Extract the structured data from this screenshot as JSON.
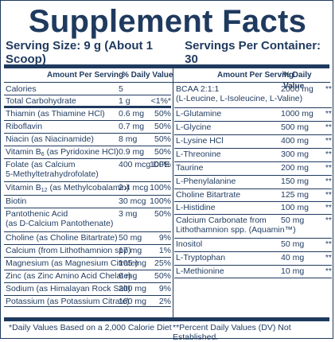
{
  "title": "Supplement Facts",
  "serving_size": "Serving Size: 9 g (About 1 Scoop)",
  "servings_per_container": "Servings Per Container: 30",
  "header_left": {
    "amount": "Amount Per Serving",
    "dv": "% Daily Value"
  },
  "header_right": {
    "amount": "Amount Per Serving",
    "dv": "% Daily Value"
  },
  "left_rows": [
    {
      "name": "Calories",
      "amount": "5",
      "dv": ""
    },
    {
      "name": "Total Carbohydrate",
      "amount": "1 g",
      "dv": "<1%*"
    },
    {
      "name": "Thiamin (as Thiamine HCl)",
      "amount": "0.6 mg",
      "dv": "50%"
    },
    {
      "name": "Riboflavin",
      "amount": "0.7 mg",
      "dv": "50%"
    },
    {
      "name": "Niacin (as Niacinamide)",
      "amount": "8 mg",
      "dv": "50%"
    },
    {
      "name": "Vitamin B6 (as Pyridoxine HCl)",
      "amount": "0.9 mg",
      "dv": "50%"
    },
    {
      "name": "Folate (as Calcium\n5-Methyltetrahydrofolate)",
      "amount": "400 mcg DFE",
      "dv": "100%"
    },
    {
      "name": "Vitamin B12 (as Methylcobalamin)",
      "amount": "2.4 mcg",
      "dv": "100%"
    },
    {
      "name": "Biotin",
      "amount": "30 mcg",
      "dv": "100%"
    },
    {
      "name": "Pantothenic Acid\n(as D-Calcium Pantothenate)",
      "amount": "3 mg",
      "dv": "50%"
    },
    {
      "name": "Choline (as Choline Bitartrate)",
      "amount": "50 mg",
      "dv": "9%"
    },
    {
      "name": "Calcium (from Lithothamnion spp)",
      "amount": "17 mg",
      "dv": "1%"
    },
    {
      "name": "Magnesium (as Magnesium Citrate)",
      "amount": "105 mg",
      "dv": "25%"
    },
    {
      "name": "Zinc (as Zinc Amino Acid Chelate)",
      "amount": "6 mg",
      "dv": "50%"
    },
    {
      "name": "Sodium (as Himalayan Rock Salt)",
      "amount": "200 mg",
      "dv": "9%"
    },
    {
      "name": "Potassium (as Potassium Citrate)",
      "amount": "100 mg",
      "dv": "2%"
    }
  ],
  "right_rows": [
    {
      "name": "BCAA 2:1:1\n(L-Leucine, L-Isoleucine, L-Valine)",
      "amount": "2000 mg",
      "dv": "**"
    },
    {
      "name": "L-Glutamine",
      "amount": "1000 mg",
      "dv": "**"
    },
    {
      "name": "L-Glycine",
      "amount": "500 mg",
      "dv": "**"
    },
    {
      "name": "L-Lysine HCl",
      "amount": "400 mg",
      "dv": "**"
    },
    {
      "name": "L-Threonine",
      "amount": "300 mg",
      "dv": "**"
    },
    {
      "name": "Taurine",
      "amount": "200 mg",
      "dv": "**"
    },
    {
      "name": "L-Phenylalanine",
      "amount": "150 mg",
      "dv": "**"
    },
    {
      "name": "Choline Bitartrate",
      "amount": "125 mg",
      "dv": "**"
    },
    {
      "name": "L-Histidine",
      "amount": "100 mg",
      "dv": "**"
    },
    {
      "name": "Calcium Carbonate from\nLithothamnion spp. (Aquamin™)",
      "amount": "50 mg",
      "dv": "**"
    },
    {
      "name": "Inositol",
      "amount": "50 mg",
      "dv": "**"
    },
    {
      "name": "L-Tryptophan",
      "amount": "40 mg",
      "dv": "**"
    },
    {
      "name": "L-Methionine",
      "amount": "10 mg",
      "dv": "**"
    }
  ],
  "footer_left": "*Daily Values Based on a 2,000 Calorie Diet",
  "footer_right": "**Percent Daily Values (DV) Not Established.",
  "colors": {
    "ink": "#1f3a5f",
    "background": "#ffffff"
  }
}
